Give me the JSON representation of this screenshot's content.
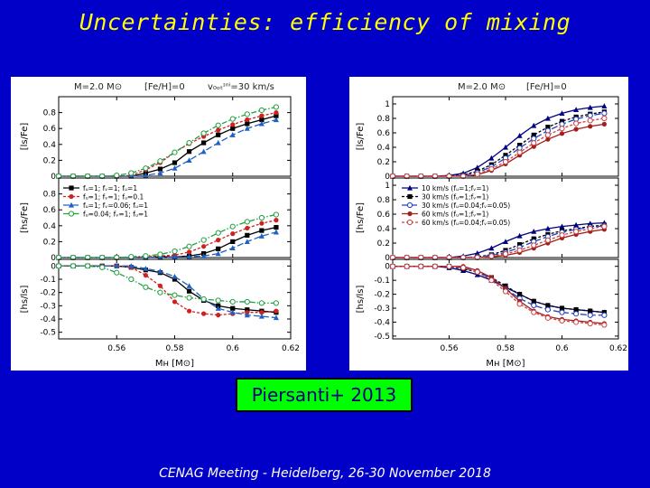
{
  "slide": {
    "title": "Uncertainties: efficiency of mixing",
    "citation": "Piersanti+ 2013",
    "footer": "CENAG Meeting - Heidelberg, 26-30 November 2018"
  },
  "chart_data": [
    {
      "type": "line",
      "name": "left",
      "header": {
        "mass": "M=2.0 M⊙",
        "feh": "[Fe/H]=0",
        "vrot": "v₀ₒₜᶦⁿⁱ=30 km/s"
      },
      "x_label": "Mʜ [M⊙]",
      "x_ticks": [
        0.56,
        0.58,
        0.6,
        0.62
      ],
      "x_tick_labels": [
        "0.56",
        "0.58",
        "0.6",
        "0.62"
      ],
      "xlim": [
        0.54,
        0.62
      ],
      "panels": [
        {
          "ylabel": "[ls/Fe]",
          "ylim": [
            0,
            1.0
          ],
          "yticks": [
            0,
            0.2,
            0.4,
            0.6,
            0.8
          ],
          "ytick_labels": [
            "0",
            "0.2",
            "0.4",
            "0.6",
            "0.8"
          ],
          "legend": false
        },
        {
          "ylabel": "[hs/Fe]",
          "ylim": [
            0,
            1.0
          ],
          "yticks": [
            0,
            0.2,
            0.4,
            0.6,
            0.8
          ],
          "ytick_labels": [
            "0",
            "0.2",
            "0.4",
            "0.6",
            "0.8"
          ],
          "legend": true
        },
        {
          "ylabel": "[hs/ls]",
          "ylim": [
            -0.55,
            0.05
          ],
          "yticks": [
            0,
            -0.1,
            -0.2,
            -0.3,
            -0.4,
            -0.5
          ],
          "ytick_labels": [
            "0",
            "-0.1",
            "-0.2",
            "-0.3",
            "-0.4",
            "-0.5"
          ],
          "legend": false
        }
      ],
      "series": [
        {
          "name": "fᵤ=1; fᵥ=1; fᵤ=1",
          "color": "#000000",
          "marker": "square",
          "dash": "solid",
          "x": [
            0.54,
            0.545,
            0.55,
            0.555,
            0.56,
            0.565,
            0.57,
            0.575,
            0.58,
            0.585,
            0.59,
            0.595,
            0.6,
            0.605,
            0.61,
            0.615
          ],
          "panel_values": [
            [
              0,
              0,
              0,
              0,
              0,
              0,
              0.04,
              0.09,
              0.17,
              0.31,
              0.42,
              0.52,
              0.6,
              0.66,
              0.71,
              0.76
            ],
            [
              0,
              0,
              0,
              0,
              0,
              0,
              0,
              0.01,
              0.01,
              0.02,
              0.05,
              0.11,
              0.2,
              0.28,
              0.34,
              0.38
            ],
            [
              0,
              0,
              0,
              0,
              0,
              -0.01,
              -0.03,
              -0.05,
              -0.1,
              -0.19,
              -0.26,
              -0.3,
              -0.32,
              -0.33,
              -0.34,
              -0.35
            ]
          ]
        },
        {
          "name": "fᵤ=1; fᵥ=1; fᵤ=0.1",
          "color": "#d02020",
          "marker": "circle",
          "dash": "short",
          "x": [
            0.54,
            0.545,
            0.55,
            0.555,
            0.56,
            0.565,
            0.57,
            0.575,
            0.58,
            0.585,
            0.59,
            0.595,
            0.6,
            0.605,
            0.61,
            0.615
          ],
          "panel_values": [
            [
              0,
              0,
              0,
              0,
              0,
              0.01,
              0.08,
              0.17,
              0.3,
              0.41,
              0.5,
              0.58,
              0.65,
              0.71,
              0.76,
              0.8
            ],
            [
              0,
              0,
              0,
              0,
              0,
              0,
              0.01,
              0.02,
              0.03,
              0.07,
              0.14,
              0.22,
              0.3,
              0.37,
              0.43,
              0.47
            ],
            [
              0,
              0,
              0,
              0,
              0,
              -0.01,
              -0.07,
              -0.15,
              -0.27,
              -0.34,
              -0.36,
              -0.37,
              -0.36,
              -0.35,
              -0.35,
              -0.34
            ]
          ]
        },
        {
          "name": "fᵤ=1; fᵥ=0.06; fᵤ=1",
          "color": "#2060c0",
          "marker": "triangle",
          "dash": "long",
          "x": [
            0.54,
            0.545,
            0.55,
            0.555,
            0.56,
            0.565,
            0.57,
            0.575,
            0.58,
            0.585,
            0.59,
            0.595,
            0.6,
            0.605,
            0.61,
            0.615
          ],
          "panel_values": [
            [
              0,
              0,
              0,
              0,
              0,
              0,
              0.01,
              0.04,
              0.1,
              0.2,
              0.31,
              0.42,
              0.52,
              0.6,
              0.66,
              0.71
            ],
            [
              0,
              0,
              0,
              0,
              0,
              0,
              0,
              0,
              0.01,
              0.01,
              0.02,
              0.05,
              0.12,
              0.2,
              0.27,
              0.32
            ],
            [
              0,
              0,
              0,
              0,
              0,
              0,
              -0.02,
              -0.04,
              -0.08,
              -0.15,
              -0.25,
              -0.32,
              -0.35,
              -0.37,
              -0.38,
              -0.39
            ]
          ]
        },
        {
          "name": "fᵤ=0.04; fᵥ=1; fᵤ=1",
          "color": "#20a040",
          "marker": "circle-open",
          "dash": "dashdot",
          "x": [
            0.54,
            0.545,
            0.55,
            0.555,
            0.56,
            0.565,
            0.57,
            0.575,
            0.58,
            0.585,
            0.59,
            0.595,
            0.6,
            0.605,
            0.61,
            0.615
          ],
          "panel_values": [
            [
              0,
              0,
              0,
              0,
              0.01,
              0.04,
              0.1,
              0.19,
              0.3,
              0.42,
              0.54,
              0.64,
              0.72,
              0.78,
              0.83,
              0.87
            ],
            [
              0,
              0,
              0,
              0,
              0,
              0.01,
              0.02,
              0.04,
              0.08,
              0.14,
              0.22,
              0.31,
              0.39,
              0.45,
              0.5,
              0.54
            ],
            [
              0,
              0,
              0,
              -0.01,
              -0.05,
              -0.1,
              -0.16,
              -0.2,
              -0.22,
              -0.24,
              -0.25,
              -0.26,
              -0.27,
              -0.27,
              -0.28,
              -0.28
            ]
          ]
        }
      ]
    },
    {
      "type": "line",
      "name": "right",
      "header": {
        "mass": "M=2.0 M⊙",
        "feh": "[Fe/H]=0",
        "vrot": ""
      },
      "x_label": "Mʜ [M⊙]",
      "x_ticks": [
        0.56,
        0.58,
        0.6,
        0.62
      ],
      "x_tick_labels": [
        "0.56",
        "0.58",
        "0.6",
        "0.62"
      ],
      "xlim": [
        0.54,
        0.62
      ],
      "panels": [
        {
          "ylabel": "[ls/Fe]",
          "ylim": [
            0,
            1.1
          ],
          "yticks": [
            0,
            0.2,
            0.4,
            0.6,
            0.8,
            1
          ],
          "ytick_labels": [
            "0",
            "0.2",
            "0.4",
            "0.6",
            "0.8",
            "1"
          ],
          "legend": false
        },
        {
          "ylabel": "[hs/Fe]",
          "ylim": [
            0,
            1.1
          ],
          "yticks": [
            0,
            0.2,
            0.4,
            0.6,
            0.8,
            1
          ],
          "ytick_labels": [
            "0",
            "0.2",
            "0.4",
            "0.6",
            "0.8",
            "1"
          ],
          "legend": true
        },
        {
          "ylabel": "[hs/ls]",
          "ylim": [
            -0.52,
            0.05
          ],
          "yticks": [
            0,
            -0.1,
            -0.2,
            -0.3,
            -0.4,
            -0.5
          ],
          "ytick_labels": [
            "0",
            "-0.1",
            "-0.2",
            "-0.3",
            "-0.4",
            "-0.5"
          ],
          "legend": false
        }
      ],
      "series": [
        {
          "name": "10 km/s (fᵤ=1;fᵥ=1)",
          "color": "#000080",
          "marker": "triangle",
          "dash": "solid",
          "x": [
            0.54,
            0.545,
            0.55,
            0.555,
            0.56,
            0.565,
            0.57,
            0.575,
            0.58,
            0.585,
            0.59,
            0.595,
            0.6,
            0.605,
            0.61,
            0.615
          ],
          "panel_values": [
            [
              0,
              0,
              0,
              0,
              0.01,
              0.04,
              0.12,
              0.25,
              0.4,
              0.56,
              0.7,
              0.8,
              0.87,
              0.92,
              0.95,
              0.97
            ],
            [
              0,
              0,
              0,
              0,
              0,
              0.02,
              0.06,
              0.13,
              0.22,
              0.3,
              0.36,
              0.4,
              0.43,
              0.45,
              0.47,
              0.48
            ],
            [
              0,
              0,
              0,
              0,
              -0.01,
              -0.03,
              -0.06,
              -0.1,
              -0.15,
              -0.2,
              -0.25,
              -0.28,
              -0.3,
              -0.31,
              -0.32,
              -0.33
            ]
          ]
        },
        {
          "name": "30 km/s (fᵤ=1;fᵥ=1)",
          "color": "#000000",
          "marker": "square",
          "dash": "short",
          "x": [
            0.54,
            0.545,
            0.55,
            0.555,
            0.56,
            0.565,
            0.57,
            0.575,
            0.58,
            0.585,
            0.59,
            0.595,
            0.6,
            0.605,
            0.61,
            0.615
          ],
          "panel_values": [
            [
              0,
              0,
              0,
              0,
              0,
              0.02,
              0.07,
              0.16,
              0.29,
              0.43,
              0.57,
              0.68,
              0.76,
              0.82,
              0.86,
              0.89
            ],
            [
              0,
              0,
              0,
              0,
              0,
              0,
              0.01,
              0.04,
              0.1,
              0.18,
              0.26,
              0.32,
              0.37,
              0.4,
              0.43,
              0.45
            ],
            [
              0,
              0,
              0,
              0,
              0,
              -0.02,
              -0.04,
              -0.08,
              -0.14,
              -0.2,
              -0.25,
              -0.28,
              -0.3,
              -0.31,
              -0.32,
              -0.33
            ]
          ]
        },
        {
          "name": "30 km/s (fᵤ=0.04;fᵥ=0.05)",
          "color": "#2040c0",
          "marker": "circle-open",
          "dash": "long",
          "x": [
            0.54,
            0.545,
            0.55,
            0.555,
            0.56,
            0.565,
            0.57,
            0.575,
            0.58,
            0.585,
            0.59,
            0.595,
            0.6,
            0.605,
            0.61,
            0.615
          ],
          "panel_values": [
            [
              0,
              0,
              0,
              0,
              0,
              0.01,
              0.05,
              0.13,
              0.25,
              0.39,
              0.52,
              0.63,
              0.72,
              0.79,
              0.84,
              0.87
            ],
            [
              0,
              0,
              0,
              0,
              0,
              0,
              0.01,
              0.03,
              0.07,
              0.14,
              0.22,
              0.29,
              0.35,
              0.39,
              0.42,
              0.44
            ],
            [
              0,
              0,
              0,
              0,
              0,
              -0.01,
              -0.04,
              -0.09,
              -0.16,
              -0.23,
              -0.28,
              -0.31,
              -0.33,
              -0.34,
              -0.35,
              -0.35
            ]
          ]
        },
        {
          "name": "60 km/s (fᵤ=1;fᵥ=1)",
          "color": "#a02020",
          "marker": "circle",
          "dash": "solid",
          "x": [
            0.54,
            0.545,
            0.55,
            0.555,
            0.56,
            0.565,
            0.57,
            0.575,
            0.58,
            0.585,
            0.59,
            0.595,
            0.6,
            0.605,
            0.61,
            0.615
          ],
          "panel_values": [
            [
              0,
              0,
              0,
              0,
              0,
              0,
              0.02,
              0.08,
              0.17,
              0.29,
              0.41,
              0.51,
              0.59,
              0.65,
              0.69,
              0.72
            ],
            [
              0,
              0,
              0,
              0,
              0,
              0,
              0,
              0.01,
              0.03,
              0.07,
              0.13,
              0.2,
              0.27,
              0.32,
              0.36,
              0.39
            ],
            [
              0,
              0,
              0,
              0,
              0,
              0,
              -0.03,
              -0.08,
              -0.16,
              -0.25,
              -0.32,
              -0.36,
              -0.38,
              -0.39,
              -0.4,
              -0.41
            ]
          ]
        },
        {
          "name": "60 km/s (fᵤ=0.04;fᵥ=0.05)",
          "color": "#d04040",
          "marker": "circle-open",
          "dash": "short",
          "x": [
            0.54,
            0.545,
            0.55,
            0.555,
            0.56,
            0.565,
            0.57,
            0.575,
            0.58,
            0.585,
            0.59,
            0.595,
            0.6,
            0.605,
            0.61,
            0.615
          ],
          "panel_values": [
            [
              0,
              0,
              0,
              0,
              0,
              0,
              0.03,
              0.1,
              0.2,
              0.33,
              0.46,
              0.57,
              0.66,
              0.73,
              0.77,
              0.8
            ],
            [
              0,
              0,
              0,
              0,
              0,
              0,
              0,
              0.02,
              0.05,
              0.1,
              0.17,
              0.24,
              0.31,
              0.36,
              0.4,
              0.43
            ],
            [
              0,
              0,
              0,
              0,
              0,
              -0.01,
              -0.04,
              -0.1,
              -0.18,
              -0.27,
              -0.33,
              -0.37,
              -0.39,
              -0.4,
              -0.41,
              -0.42
            ]
          ]
        }
      ]
    }
  ]
}
